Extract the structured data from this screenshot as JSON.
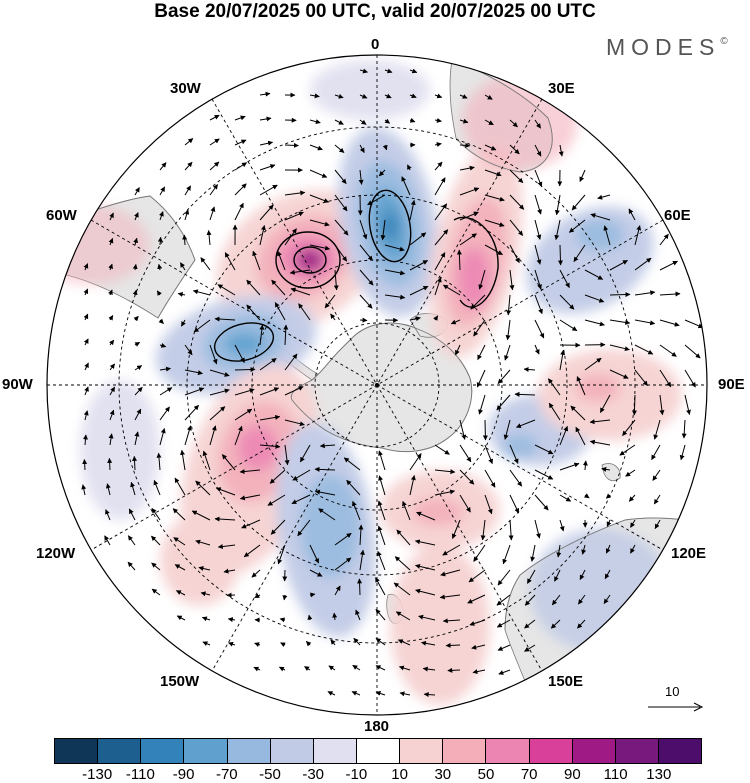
{
  "title": "Base 20/07/2025 00 UTC, valid 20/07/2025 00 UTC",
  "brand": {
    "name": "MODES",
    "mark": "©"
  },
  "map": {
    "projection": "south-polar-stereographic",
    "longitude_labels": {
      "lon_0": "0",
      "lon_30e": "30E",
      "lon_60e": "60E",
      "lon_90e": "90E",
      "lon_120e": "120E",
      "lon_150e": "150E",
      "lon_180": "180",
      "lon_150w": "150W",
      "lon_120w": "120W",
      "lon_90w": "90W",
      "lon_60w": "60W",
      "lon_30w": "30W"
    },
    "reference_vector": "10",
    "colors": {
      "land": "#e8e8e8",
      "coast": "#7a7a7a",
      "grid": "#000000"
    }
  },
  "colorbar": {
    "labels": [
      "-130",
      "-110",
      "-90",
      "-70",
      "-50",
      "-30",
      "-10",
      "10",
      "30",
      "50",
      "70",
      "90",
      "110",
      "130"
    ],
    "colors": [
      "#0f3557",
      "#1d5f8f",
      "#3482ba",
      "#5fa0cf",
      "#97b9df",
      "#c1cbe6",
      "#e1e0f0",
      "#ffffff",
      "#f6d2d2",
      "#f3aeb9",
      "#ed85b2",
      "#d9409a",
      "#a01a85",
      "#781a7d",
      "#4d0d6b"
    ]
  },
  "anomalies": [
    {
      "id": "pos-atlantic",
      "value": 100
    },
    {
      "id": "neg-south-atlantic",
      "value": -90
    },
    {
      "id": "pos-southwest-indian",
      "value": 75
    },
    {
      "id": "neg-drake",
      "value": -80
    },
    {
      "id": "pos-east-pacific",
      "value": 60
    },
    {
      "id": "neg-amundsen",
      "value": -60
    },
    {
      "id": "pos-ross",
      "value": 50
    },
    {
      "id": "neg-indian",
      "value": -40
    },
    {
      "id": "pos-indian-east",
      "value": 40
    },
    {
      "id": "neg-australia",
      "value": -45
    },
    {
      "id": "pos-tasman",
      "value": 30
    }
  ]
}
